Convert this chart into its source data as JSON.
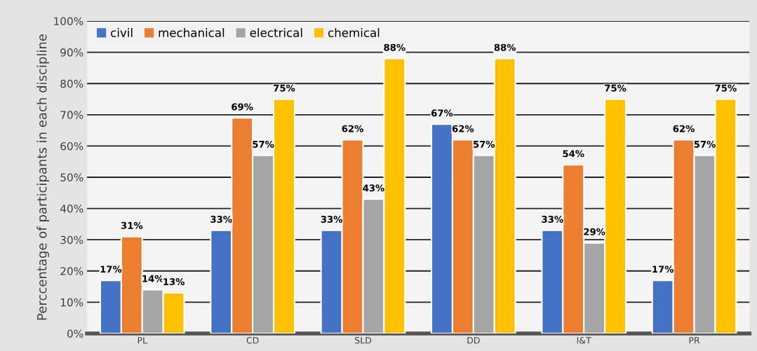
{
  "chart_data": {
    "type": "bar",
    "ylabel": "Perccentage of participants in each discipline",
    "categories": [
      "PL",
      "CD",
      "SLD",
      "DD",
      "I&T",
      "PR"
    ],
    "series": [
      {
        "name": "civil",
        "color": "#4472c4",
        "values": [
          17,
          33,
          33,
          67,
          33,
          17
        ],
        "value_labels": [
          "17%",
          "33%",
          "33%",
          "67%",
          "33%",
          "17%"
        ]
      },
      {
        "name": "mechanical",
        "color": "#ed7d31",
        "values": [
          31,
          69,
          62,
          62,
          54,
          62
        ],
        "value_labels": [
          "31%",
          "69%",
          "62%",
          "62%",
          "54%",
          "62%"
        ]
      },
      {
        "name": "electrical",
        "color": "#a5a5a5",
        "values": [
          14,
          57,
          43,
          57,
          29,
          57
        ],
        "value_labels": [
          "14%",
          "57%",
          "43%",
          "57%",
          "29%",
          "57%"
        ]
      },
      {
        "name": "chemical",
        "color": "#ffc000",
        "values": [
          13,
          75,
          88,
          88,
          75,
          75
        ],
        "value_labels": [
          "13%",
          "75%",
          "88%",
          "88%",
          "75%",
          "75%"
        ]
      }
    ],
    "ylim": [
      0,
      100
    ],
    "yticks": [
      {
        "value": 0,
        "label": "0%"
      },
      {
        "value": 10,
        "label": "10%"
      },
      {
        "value": 20,
        "label": "20%"
      },
      {
        "value": 30,
        "label": "30%"
      },
      {
        "value": 40,
        "label": "40%"
      },
      {
        "value": 50,
        "label": "50%"
      },
      {
        "value": 60,
        "label": "60%"
      },
      {
        "value": 70,
        "label": "70%"
      },
      {
        "value": 80,
        "label": "80%"
      },
      {
        "value": 90,
        "label": "90%"
      },
      {
        "value": 100,
        "label": "100%"
      }
    ],
    "grid": "y",
    "legend": "top left"
  }
}
